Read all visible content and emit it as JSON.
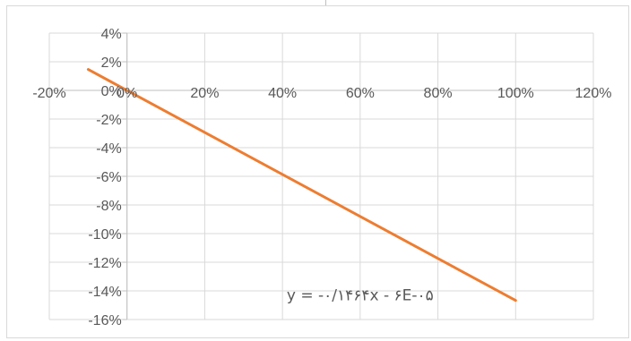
{
  "chart_data": {
    "type": "scatter",
    "title": "",
    "xlabel": "",
    "ylabel": "",
    "xlim": [
      -0.2,
      1.2
    ],
    "ylim": [
      -0.16,
      0.04
    ],
    "x_ticks": [
      -0.2,
      0,
      0.2,
      0.4,
      0.6,
      0.8,
      1.0,
      1.2
    ],
    "x_tick_labels": [
      "-20%",
      "0%",
      "20%",
      "40%",
      "60%",
      "80%",
      "100%",
      "120%"
    ],
    "y_ticks": [
      0.04,
      0.02,
      0,
      -0.02,
      -0.04,
      -0.06,
      -0.08,
      -0.1,
      -0.12,
      -0.14,
      -0.16
    ],
    "y_tick_labels": [
      "4%",
      "2%",
      "0%",
      "-2%",
      "-4%",
      "-6%",
      "-8%",
      "-10%",
      "-12%",
      "-14%",
      "-16%"
    ],
    "grid": true,
    "legend": false,
    "series": [
      {
        "type": "line",
        "color": "#ed7d31",
        "x": [
          -0.1,
          1.0
        ],
        "y": [
          0.0146,
          -0.1467
        ]
      }
    ],
    "annotations": [
      {
        "text": "y = -۰/۱۴۶۴x - ۶E-۰۵",
        "x": 0.6,
        "y": -0.1428
      }
    ]
  },
  "colors": {
    "grid": "#d9d9d9",
    "axis": "#bfbfbf",
    "line": "#ed7d31",
    "text": "#595959"
  }
}
